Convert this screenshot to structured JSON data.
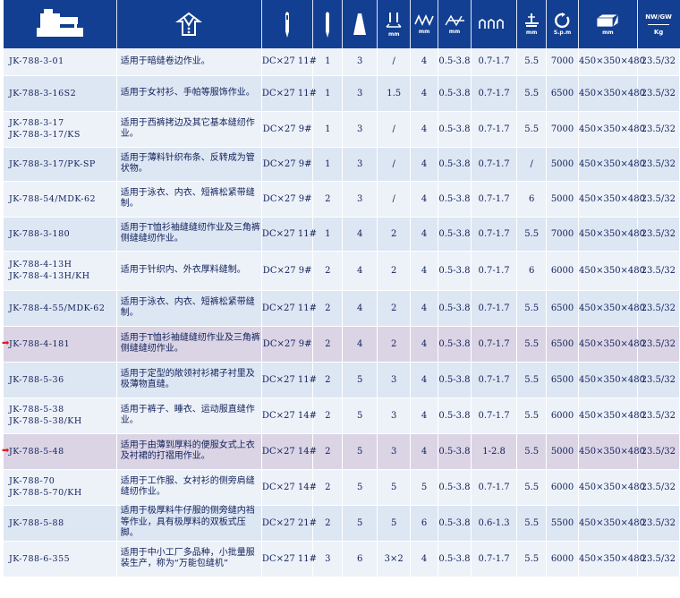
{
  "header": {
    "needle_unit": "mm",
    "stitch_width_unit": "mm",
    "stitch_length_unit": "mm",
    "diff_unit": "mm",
    "presser_unit": "mm",
    "speed_unit": "S.p.m",
    "size_unit": "mm",
    "weight_label_top": "NW/GW",
    "weight_unit": "Kg"
  },
  "rows": [
    {
      "model": [
        "JK-788-3-01"
      ],
      "desc": "适用于暗缝卷边作业。",
      "needle": "DC×27 11#",
      "n": "1",
      "t": "3",
      "g": "/",
      "sw": "4",
      "sl": "0.5-3.8",
      "df": "0.7-1.7",
      "p": "5.5",
      "spd": "7000",
      "size": "450×350×480",
      "wt": "23.5/32"
    },
    {
      "model": [
        "JK-788-3-16S2"
      ],
      "desc": "适用于女衬衫、手帕等服饰作业。",
      "needle": "DC×27 11#",
      "n": "1",
      "t": "3",
      "g": "1.5",
      "sw": "4",
      "sl": "0.5-3.8",
      "df": "0.7-1.7",
      "p": "5.5",
      "spd": "6500",
      "size": "450×350×480",
      "wt": "23.5/32"
    },
    {
      "model": [
        "JK-788-3-17",
        "JK-788-3-17/KS"
      ],
      "desc": "适用于西裤拷边及其它基本缝纫作业。",
      "needle": "DC×27 9#",
      "n": "1",
      "t": "3",
      "g": "/",
      "sw": "4",
      "sl": "0.5-3.8",
      "df": "0.7-1.7",
      "p": "5.5",
      "spd": "7000",
      "size": "450×350×480",
      "wt": "23.5/32"
    },
    {
      "model": [
        "JK-788-3-17/PK-SP"
      ],
      "desc": "适用于薄料针织布条、反转成为管状物。",
      "needle": "DC×27 9#",
      "n": "1",
      "t": "3",
      "g": "/",
      "sw": "4",
      "sl": "0.5-3.8",
      "df": "0.7-1.7",
      "p": "/",
      "spd": "5000",
      "size": "450×350×480",
      "wt": "23.5/32"
    },
    {
      "model": [
        "JK-788-54/MDK-62"
      ],
      "desc": "适用于泳衣、内衣、短裤松紧带缝制。",
      "needle": "DC×27 9#",
      "n": "2",
      "t": "3",
      "g": "/",
      "sw": "4",
      "sl": "0.5-3.8",
      "df": "0.7-1.7",
      "p": "6",
      "spd": "5000",
      "size": "450×350×480",
      "wt": "23.5/32"
    },
    {
      "model": [
        "JK-788-3-180"
      ],
      "desc": "适用于T恤衫袖缝缝纫作业及三角裤侧缝缝纫作业。",
      "needle": "DC×27 11#",
      "n": "1",
      "t": "4",
      "g": "2",
      "sw": "4",
      "sl": "0.5-3.8",
      "df": "0.7-1.7",
      "p": "5.5",
      "spd": "7000",
      "size": "450×350×480",
      "wt": "23.5/32"
    },
    {
      "model": [
        "JK-788-4-13H",
        "JK-788-4-13H/KH"
      ],
      "desc": "适用于针织内、外衣厚料缝制。",
      "needle": "DC×27 9#",
      "n": "2",
      "t": "4",
      "g": "2",
      "sw": "4",
      "sl": "0.5-3.8",
      "df": "0.7-1.7",
      "p": "6",
      "spd": "6000",
      "size": "450×350×480",
      "wt": "23.5/32"
    },
    {
      "model": [
        "JK-788-4-55/MDK-62"
      ],
      "desc": "适用于泳衣、内衣、短裤松紧带缝制。",
      "needle": "DC×27 11#",
      "n": "2",
      "t": "4",
      "g": "2",
      "sw": "4",
      "sl": "0.5-3.8",
      "df": "0.7-1.7",
      "p": "5.5",
      "spd": "6500",
      "size": "450×350×480",
      "wt": "23.5/32"
    },
    {
      "model": [
        "JK-788-4-181"
      ],
      "desc": "适用于T恤衫袖缝缝纫作业及三角裤侧缝缝纫作业。",
      "needle": "DC×27 9#",
      "n": "2",
      "t": "4",
      "g": "2",
      "sw": "4",
      "sl": "0.5-3.8",
      "df": "0.7-1.7",
      "p": "5.5",
      "spd": "6500",
      "size": "450×350×480",
      "wt": "23.5/32",
      "highlight": true
    },
    {
      "model": [
        "JK-788-5-36"
      ],
      "desc": "适用于定型的敞领衬衫裙子衬里及极薄物直缝。",
      "needle": "DC×27 11#",
      "n": "2",
      "t": "5",
      "g": "3",
      "sw": "4",
      "sl": "0.5-3.8",
      "df": "0.7-1.7",
      "p": "5.5",
      "spd": "6500",
      "size": "450×350×480",
      "wt": "23.5/32"
    },
    {
      "model": [
        "JK-788-5-38",
        "JK-788-5-38/KH"
      ],
      "desc": "适用于裤子、睡衣、运动服直缝作业。",
      "needle": "DC×27 14#",
      "n": "2",
      "t": "5",
      "g": "3",
      "sw": "4",
      "sl": "0.5-3.8",
      "df": "0.7-1.7",
      "p": "5.5",
      "spd": "6000",
      "size": "450×350×480",
      "wt": "23.5/32"
    },
    {
      "model": [
        "JK-788-5-48"
      ],
      "desc": "适用于由薄到厚料的便服女式上衣及衬裙的打褶用作业。",
      "needle": "DC×27 14#",
      "n": "2",
      "t": "5",
      "g": "3",
      "sw": "4",
      "sl": "0.5-3.8",
      "df": "1-2.8",
      "p": "5.5",
      "spd": "5000",
      "size": "450×350×480",
      "wt": "23.5/32",
      "highlight": true
    },
    {
      "model": [
        "JK-788-70",
        "JK-788-5-70/KH"
      ],
      "desc": "适用于工作服、女衬衫的侧旁肩缝缝纫作业。",
      "needle": "DC×27 14#",
      "n": "2",
      "t": "5",
      "g": "5",
      "sw": "5",
      "sl": "0.5-3.8",
      "df": "0.7-1.7",
      "p": "5.5",
      "spd": "6000",
      "size": "450×350×480",
      "wt": "23.5/32"
    },
    {
      "model": [
        "JK-788-5-88"
      ],
      "desc": "适用于极厚料牛仔服的侧旁缝内裆等作业，具有极厚料的双板式压脚。",
      "needle": "DC×27 21#",
      "n": "2",
      "t": "5",
      "g": "5",
      "sw": "6",
      "sl": "0.5-3.8",
      "df": "0.6-1.3",
      "p": "5.5",
      "spd": "5500",
      "size": "450×350×480",
      "wt": "23.5/32"
    },
    {
      "model": [
        "JK-788-6-355"
      ],
      "desc": "适用于中小工厂多品种，小批量服装生产，称为“万能包缝机”",
      "needle": "DC×27 11#",
      "n": "3",
      "t": "6",
      "g": "3×2",
      "sw": "4",
      "sl": "0.5-3.8",
      "df": "0.7-1.7",
      "p": "5.5",
      "spd": "6000",
      "size": "450×350×480",
      "wt": "23.5/32"
    }
  ],
  "colors": {
    "header_bg": "#123f91",
    "row_a": "#edf2f9",
    "row_b": "#dde6f3",
    "highlight": "#dbd4e5",
    "arrow": "#d92020"
  }
}
